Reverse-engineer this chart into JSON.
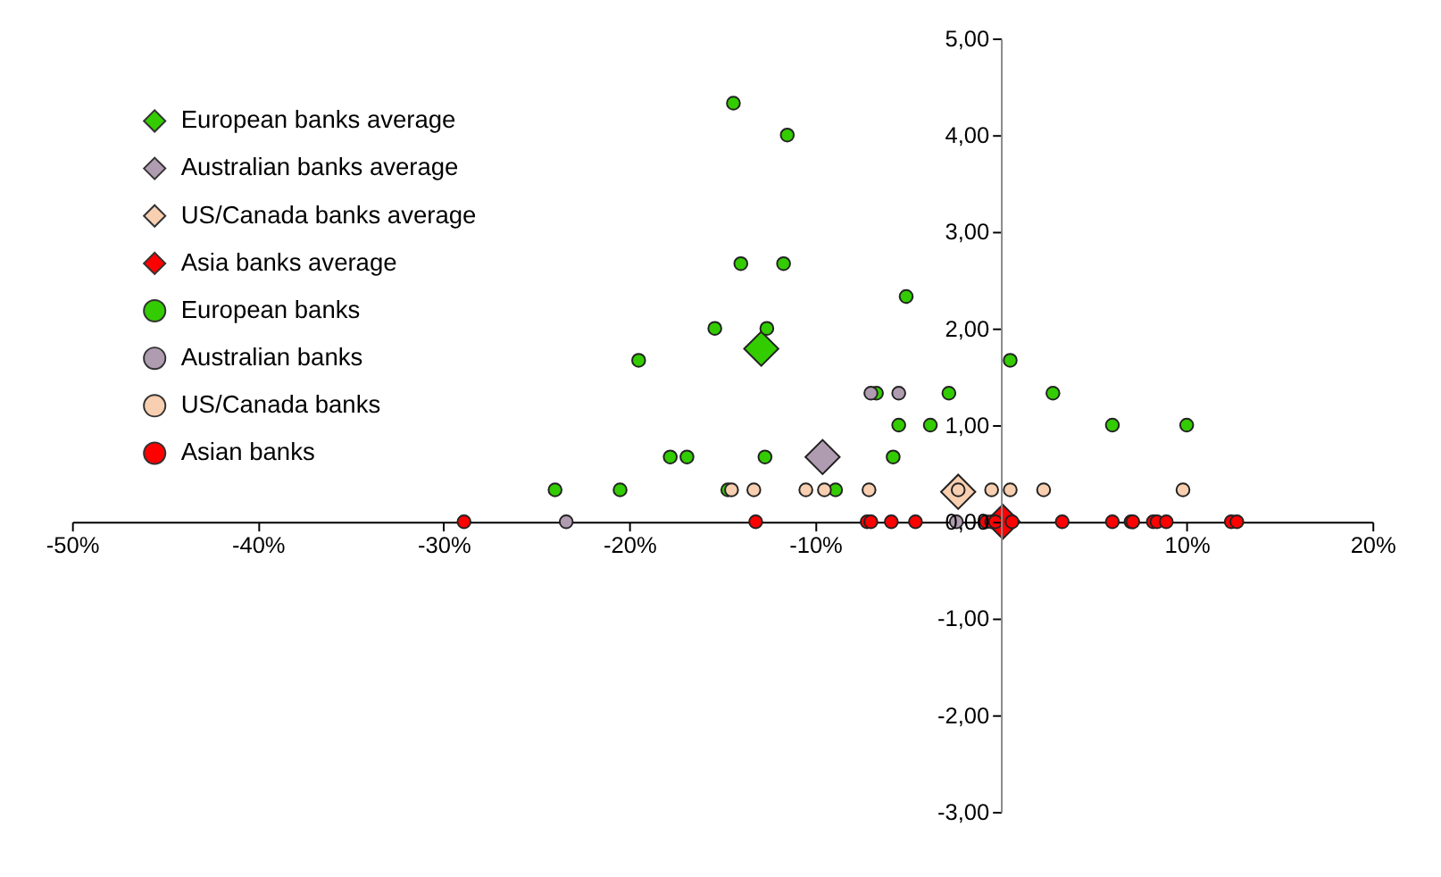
{
  "chart_data": {
    "type": "scatter",
    "xlim": [
      -50,
      20
    ],
    "xticks": [
      {
        "value": -50,
        "label": "-50%"
      },
      {
        "value": -40,
        "label": "-40%"
      },
      {
        "value": -30,
        "label": "-30%"
      },
      {
        "value": -20,
        "label": "-20%"
      },
      {
        "value": -10,
        "label": "-10%"
      },
      {
        "value": 10,
        "label": "10%"
      },
      {
        "value": 20,
        "label": "20%"
      }
    ],
    "ylim": [
      -3,
      5
    ],
    "yticks": [
      {
        "value": -3,
        "label": "-3,00"
      },
      {
        "value": -2,
        "label": "-2,00"
      },
      {
        "value": -1,
        "label": "-1,00"
      },
      {
        "value": 0,
        "label": "0,00"
      },
      {
        "value": 1,
        "label": "1,00"
      },
      {
        "value": 2,
        "label": "2,00"
      },
      {
        "value": 3,
        "label": "3,00"
      },
      {
        "value": 4,
        "label": "4,00"
      },
      {
        "value": 5,
        "label": "5,00"
      }
    ],
    "grid": false,
    "legend": "top left",
    "series": [
      {
        "name": "European banks average",
        "color": "#33cc00",
        "marker": "diamond",
        "x": [
          -12.9
        ],
        "values": [
          1.79
        ]
      },
      {
        "name": "Australian banks average",
        "color": "#b09cb0",
        "marker": "diamond",
        "x": [
          -9.6
        ],
        "values": [
          0.67
        ]
      },
      {
        "name": "US/Canada banks average",
        "color": "#f8cfb0",
        "marker": "diamond",
        "x": [
          -2.3
        ],
        "values": [
          0.31
        ]
      },
      {
        "name": "Asia banks average",
        "color": "#ff0000",
        "marker": "diamond",
        "x": [
          0.1
        ],
        "values": [
          0
        ]
      },
      {
        "name": "European banks",
        "color": "#33cc00",
        "marker": "circle",
        "x": [
          -14.4,
          -11.5,
          -14.0,
          -11.7,
          -15.4,
          -12.6,
          -19.5,
          -5.1,
          0.5,
          2.8,
          -2.8,
          -6.7,
          -5.5,
          -3.8,
          6.0,
          10.0,
          -17.8,
          -16.9,
          -12.7,
          -5.8,
          -24.0,
          -20.5,
          -14.7,
          -8.9
        ],
        "values": [
          4.33,
          4.0,
          2.67,
          2.67,
          2.0,
          2.0,
          1.67,
          2.33,
          1.67,
          1.33,
          1.33,
          1.33,
          1.0,
          1.0,
          1.0,
          1.0,
          0.67,
          0.67,
          0.67,
          0.67,
          0.33,
          0.33,
          0.33,
          0.33
        ]
      },
      {
        "name": "Australian banks",
        "color": "#b09cb0",
        "marker": "circle",
        "x": [
          -7.0,
          -5.5,
          -23.4,
          -2.4
        ],
        "values": [
          1.33,
          1.33,
          0,
          0
        ]
      },
      {
        "name": "US/Canada banks",
        "color": "#f8cfb0",
        "marker": "circle",
        "x": [
          -14.5,
          -13.3,
          -10.5,
          -9.5,
          -7.1,
          -2.3,
          -0.5,
          0.5,
          2.3,
          9.8
        ],
        "values": [
          0.33,
          0.33,
          0.33,
          0.33,
          0.33,
          0.33,
          0.33,
          0.33,
          0.33,
          0.33
        ]
      },
      {
        "name": "Asian banks",
        "color": "#ff0000",
        "marker": "circle",
        "x": [
          -28.9,
          -13.2,
          -7.2,
          -7.0,
          -5.9,
          -4.6,
          -0.8,
          -0.5,
          -0.3,
          0.6,
          3.3,
          6.0,
          7.0,
          7.1,
          8.2,
          8.4,
          8.9,
          12.4,
          12.7
        ],
        "values": [
          0,
          0,
          0,
          0,
          0,
          0,
          0,
          0,
          0,
          0,
          0,
          0,
          0,
          0,
          0,
          0,
          0,
          0,
          0
        ]
      }
    ]
  }
}
